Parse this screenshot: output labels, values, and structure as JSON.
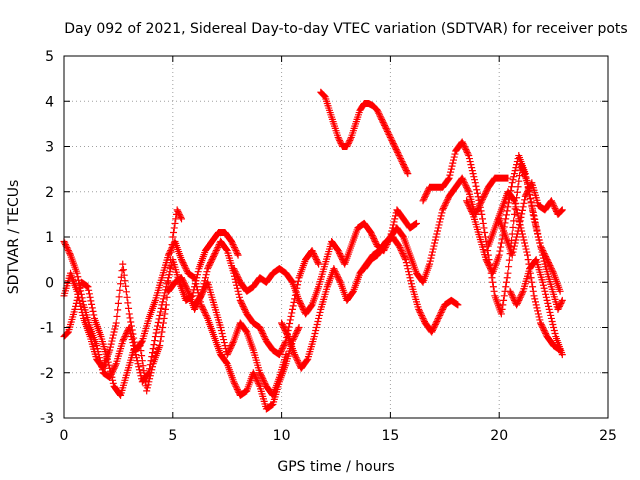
{
  "chart_data": {
    "type": "scatter",
    "title": "Day 092 of 2021, Sidereal Day-to-day VTEC variation (SDTVAR) for receiver pots",
    "xlabel": "GPS time / hours",
    "ylabel": "SDTVAR / TECUs",
    "xlim": [
      0,
      25
    ],
    "ylim": [
      -3,
      5
    ],
    "xticks": [
      0,
      5,
      10,
      15,
      20,
      25
    ],
    "xtick_labels": [
      "0",
      "5",
      "10",
      "15",
      "20",
      "25"
    ],
    "yticks": [
      -3,
      -2,
      -1,
      0,
      1,
      2,
      3,
      4,
      5
    ],
    "ytick_labels": [
      "-3",
      "-2",
      "-1",
      "0",
      "1",
      "2",
      "3",
      "4",
      "5"
    ],
    "grid": true,
    "marker": "+",
    "color": "#ff0000",
    "series": [
      {
        "name": "s1",
        "x": [
          0.0,
          0.3,
          0.6,
          0.9,
          1.2,
          1.5,
          1.8,
          2.1,
          2.4,
          2.7,
          3.0,
          3.3,
          3.6,
          3.9,
          4.2,
          4.5,
          4.8,
          5.0,
          5.3,
          5.6,
          5.9,
          6.2,
          6.5,
          6.8,
          7.1,
          7.4,
          7.7,
          8.0
        ],
        "y": [
          0.9,
          0.6,
          0.2,
          -0.5,
          -1.0,
          -1.4,
          -2.0,
          -2.1,
          -1.8,
          -1.3,
          -1.0,
          -1.6,
          -2.2,
          -2.0,
          -1.2,
          -0.5,
          0.1,
          0.5,
          0.0,
          -0.4,
          -0.3,
          0.3,
          0.7,
          0.9,
          1.1,
          1.1,
          0.9,
          0.6
        ]
      },
      {
        "name": "s2",
        "x": [
          0.0,
          0.2,
          0.5,
          0.8,
          1.1,
          1.4,
          1.7,
          2.0,
          2.3,
          2.6,
          2.9,
          3.2,
          3.5,
          3.8,
          4.1,
          4.4,
          4.7,
          5.0,
          5.2,
          5.4
        ],
        "y": [
          -1.2,
          -1.1,
          -0.6,
          0.0,
          -0.1,
          -0.8,
          -1.2,
          -1.7,
          -2.3,
          -2.5,
          -2.0,
          -1.5,
          -1.4,
          -2.4,
          -1.8,
          -1.4,
          -0.5,
          1.0,
          1.6,
          1.4
        ]
      },
      {
        "name": "s3",
        "x": [
          0.0,
          0.3,
          0.6,
          0.9,
          1.2,
          1.5,
          1.8,
          2.1,
          2.4,
          2.7,
          3.0,
          3.3,
          3.6,
          3.9,
          4.2,
          4.5,
          4.8,
          5.1,
          5.4,
          5.7,
          6.0,
          6.3,
          6.6,
          6.9,
          7.2,
          7.5,
          7.8,
          8.1,
          8.4,
          8.7,
          9.0,
          9.3,
          9.6,
          9.9,
          10.2,
          10.5,
          10.8
        ],
        "y": [
          -0.3,
          0.2,
          -0.2,
          -0.8,
          -1.2,
          -1.7,
          -1.9,
          -1.5,
          -0.9,
          0.4,
          -0.7,
          -1.5,
          -1.3,
          -0.8,
          -0.4,
          0.1,
          0.6,
          0.9,
          0.5,
          0.2,
          0.1,
          -0.5,
          -0.8,
          -1.2,
          -1.6,
          -1.8,
          -2.2,
          -2.5,
          -2.4,
          -2.0,
          -2.3,
          -2.8,
          -2.7,
          -2.2,
          -1.8,
          -1.3,
          -1.0
        ]
      },
      {
        "name": "s4",
        "x": [
          4.8,
          5.1,
          5.4,
          5.7,
          6.0,
          6.3,
          6.6,
          6.9,
          7.2,
          7.5,
          7.8,
          8.1,
          8.4,
          8.7,
          9.0,
          9.3,
          9.6,
          9.9,
          10.2,
          10.5,
          10.8,
          11.1,
          11.4,
          11.7
        ],
        "y": [
          -0.2,
          0.0,
          0.1,
          -0.2,
          -0.6,
          -0.3,
          0.3,
          0.6,
          0.9,
          0.7,
          0.2,
          -0.4,
          -0.7,
          -0.9,
          -1.0,
          -1.3,
          -1.5,
          -1.6,
          -1.3,
          -0.6,
          0.1,
          0.5,
          0.7,
          0.4
        ]
      },
      {
        "name": "s5",
        "x": [
          6.0,
          6.3,
          6.6,
          6.9,
          7.2,
          7.5,
          7.8,
          8.1,
          8.4,
          8.7,
          9.0,
          9.3,
          9.6,
          9.9,
          10.2
        ],
        "y": [
          -0.5,
          -0.3,
          0.0,
          -0.5,
          -1.0,
          -1.6,
          -1.3,
          -0.9,
          -1.1,
          -1.5,
          -2.0,
          -2.3,
          -2.5,
          -2.1,
          -1.6
        ]
      },
      {
        "name": "s6",
        "x": [
          7.8,
          8.1,
          8.4,
          8.7,
          9.0,
          9.3,
          9.6,
          9.9,
          10.2,
          10.5,
          10.8,
          11.1,
          11.4,
          11.7,
          12.0,
          12.3,
          12.6,
          12.9,
          13.2,
          13.5,
          13.8,
          14.1,
          14.4,
          14.7,
          15.0,
          15.3,
          15.6,
          15.9,
          16.2
        ],
        "y": [
          0.3,
          0.0,
          -0.2,
          -0.1,
          0.1,
          0.0,
          0.2,
          0.3,
          0.2,
          0.0,
          -0.4,
          -0.7,
          -0.5,
          -0.1,
          0.4,
          0.9,
          0.7,
          0.4,
          0.8,
          1.2,
          1.3,
          1.1,
          0.8,
          0.7,
          1.0,
          1.6,
          1.4,
          1.2,
          1.3
        ]
      },
      {
        "name": "s7",
        "x": [
          10.0,
          10.3,
          10.6,
          10.9,
          11.2,
          11.5,
          11.8,
          12.1,
          12.4,
          12.7,
          13.0,
          13.3,
          13.6,
          13.9,
          14.2,
          14.5,
          14.8,
          15.1,
          15.4,
          15.7,
          16.0,
          16.3,
          16.6,
          16.9,
          17.2,
          17.5,
          17.8,
          18.1
        ],
        "y": [
          -0.9,
          -1.2,
          -1.6,
          -1.9,
          -1.7,
          -1.2,
          -0.6,
          -0.1,
          0.3,
          0.0,
          -0.4,
          -0.2,
          0.2,
          0.4,
          0.6,
          0.7,
          0.9,
          1.0,
          0.8,
          0.5,
          -0.1,
          -0.6,
          -0.9,
          -1.1,
          -0.8,
          -0.5,
          -0.4,
          -0.5
        ]
      },
      {
        "name": "s8",
        "x": [
          11.8,
          12.0,
          12.2,
          12.4,
          12.6,
          12.8,
          13.0,
          13.2,
          13.4,
          13.6,
          13.8,
          14.0,
          14.2,
          14.4,
          14.6,
          14.8,
          15.0,
          15.2,
          15.4,
          15.6,
          15.8
        ],
        "y": [
          4.2,
          4.1,
          3.8,
          3.5,
          3.2,
          3.0,
          3.0,
          3.2,
          3.5,
          3.8,
          3.95,
          3.95,
          3.9,
          3.8,
          3.6,
          3.4,
          3.2,
          3.0,
          2.8,
          2.6,
          2.4
        ]
      },
      {
        "name": "s9",
        "x": [
          13.8,
          14.1,
          14.4,
          14.7,
          15.0,
          15.3,
          15.6,
          15.9,
          16.2,
          16.5,
          16.8,
          17.1,
          17.4,
          17.7,
          18.0,
          18.3,
          18.6,
          18.9,
          19.2,
          19.5,
          19.8,
          20.1,
          20.4
        ],
        "y": [
          0.3,
          0.5,
          0.6,
          0.8,
          1.0,
          1.2,
          1.0,
          0.6,
          0.2,
          0.0,
          0.4,
          1.0,
          1.6,
          1.9,
          2.1,
          2.3,
          2.0,
          1.5,
          1.8,
          2.1,
          2.3,
          2.3,
          2.3
        ]
      },
      {
        "name": "s10",
        "x": [
          16.5,
          16.8,
          17.1,
          17.4,
          17.7,
          18.0,
          18.3,
          18.6,
          18.9,
          19.2,
          19.5,
          19.8,
          20.1,
          20.4,
          20.7,
          21.0,
          21.3,
          21.6,
          21.9,
          22.2,
          22.5,
          22.8
        ],
        "y": [
          1.8,
          2.1,
          2.1,
          2.1,
          2.3,
          2.9,
          3.1,
          2.8,
          2.2,
          1.5,
          0.6,
          -0.3,
          -0.7,
          0.2,
          1.5,
          2.6,
          2.2,
          1.4,
          0.8,
          0.5,
          0.2,
          -0.2
        ]
      },
      {
        "name": "s11",
        "x": [
          18.5,
          18.8,
          19.1,
          19.4,
          19.7,
          20.0,
          20.3,
          20.6,
          20.9,
          21.2,
          21.5,
          21.8,
          22.1,
          22.4,
          22.7,
          22.9
        ],
        "y": [
          1.8,
          1.5,
          1.0,
          0.5,
          0.2,
          0.6,
          1.4,
          2.2,
          2.8,
          2.4,
          1.7,
          1.0,
          0.4,
          -0.1,
          -0.6,
          -0.4
        ]
      },
      {
        "name": "s12",
        "x": [
          19.5,
          19.8,
          20.1,
          20.4,
          20.7,
          21.0,
          21.3,
          21.6,
          21.9,
          22.2,
          22.5,
          22.8
        ],
        "y": [
          0.8,
          1.2,
          1.6,
          2.0,
          1.8,
          1.2,
          0.6,
          -0.3,
          -0.9,
          -1.2,
          -1.4,
          -1.5
        ]
      },
      {
        "name": "s13",
        "x": [
          20.0,
          20.3,
          20.6,
          20.9,
          21.2,
          21.5,
          21.8,
          22.1,
          22.4,
          22.7,
          22.9
        ],
        "y": [
          1.4,
          1.0,
          0.6,
          1.2,
          1.9,
          2.2,
          1.7,
          1.6,
          1.8,
          1.5,
          1.6
        ]
      },
      {
        "name": "s14",
        "x": [
          20.5,
          20.8,
          21.1,
          21.4,
          21.7,
          22.0,
          22.3,
          22.6,
          22.9
        ],
        "y": [
          -0.2,
          -0.5,
          -0.2,
          0.3,
          0.5,
          0.0,
          -0.6,
          -1.2,
          -1.6
        ]
      }
    ]
  }
}
